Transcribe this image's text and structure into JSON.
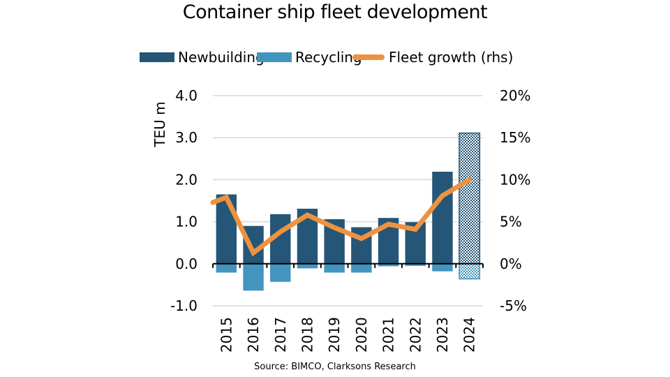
{
  "chart_data": {
    "type": "bar",
    "title": "Container ship fleet development",
    "source": "Source: BIMCO, Clarksons Research",
    "categories": [
      "2015",
      "2016",
      "2017",
      "2018",
      "2019",
      "2020",
      "2021",
      "2022",
      "2023",
      "2024"
    ],
    "series": [
      {
        "name": "Newbuilding",
        "axis": "left",
        "kind": "bar",
        "color": "#255677",
        "values": [
          1.65,
          0.9,
          1.18,
          1.31,
          1.06,
          0.87,
          1.09,
          0.99,
          2.19,
          3.11
        ]
      },
      {
        "name": "Recycling",
        "axis": "left",
        "kind": "bar",
        "color": "#4394BE",
        "values": [
          -0.21,
          -0.64,
          -0.43,
          -0.11,
          -0.21,
          -0.21,
          -0.06,
          -0.05,
          -0.18,
          -0.36
        ]
      },
      {
        "name": "Fleet growth (rhs)",
        "axis": "right",
        "kind": "line",
        "color": "#EE9240",
        "values": [
          7.9,
          1.3,
          3.8,
          5.8,
          4.3,
          3.0,
          4.7,
          4.1,
          8.1,
          10.0
        ],
        "line_start_value": 7.3
      }
    ],
    "forecast_categories": [
      "2024"
    ],
    "ylabel": "TEU m",
    "ylim": [
      -1.0,
      4.0
    ],
    "yticks": [
      "4.0",
      "3.0",
      "2.0",
      "1.0",
      "0.0",
      "-1.0"
    ],
    "y2lim": [
      -5,
      20
    ],
    "y2ticks": [
      "20%",
      "15%",
      "10%",
      "5%",
      "0%",
      "-5%"
    ],
    "grid": true,
    "legend_position": "top"
  }
}
